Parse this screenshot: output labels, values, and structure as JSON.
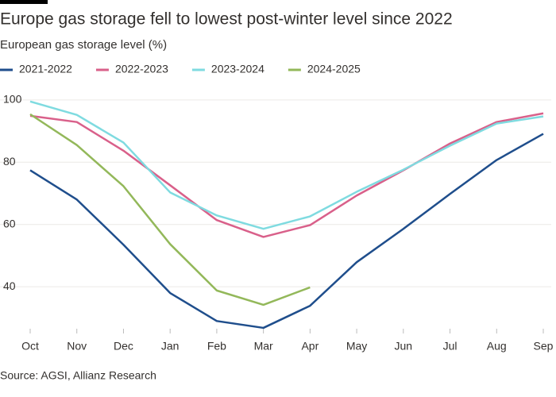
{
  "chart_data": {
    "type": "line",
    "title": "Europe gas storage fell to lowest post-winter level since 2022",
    "subtitle": "European gas storage level (%)",
    "source": "Source: AGSI, Allianz Research",
    "categories": [
      "Oct",
      "Nov",
      "Dec",
      "Jan",
      "Feb",
      "Mar",
      "Apr",
      "May",
      "Jun",
      "Jul",
      "Aug",
      "Sep"
    ],
    "series": [
      {
        "name": "2021-2022",
        "color": "#1f4e8c",
        "values": [
          77.4,
          68,
          53.5,
          38,
          29,
          26.8,
          33.9,
          47.9,
          58.6,
          69.8,
          80.7,
          89.1
        ]
      },
      {
        "name": "2022-2023",
        "color": "#d9608a",
        "values": [
          94.9,
          92.9,
          83.7,
          72.6,
          61.4,
          56,
          59.8,
          69.3,
          77.4,
          86,
          92.9,
          95.7
        ]
      },
      {
        "name": "2023-2024",
        "color": "#7fdbe0",
        "values": [
          99.5,
          95.2,
          86.3,
          70.3,
          62.9,
          58.6,
          62.6,
          70.5,
          77.6,
          85.3,
          92.4,
          94.7
        ]
      },
      {
        "name": "2024-2025",
        "color": "#93b85a",
        "values": [
          95.4,
          85.5,
          72.3,
          53.7,
          38.8,
          34.2,
          39.8,
          null,
          null,
          null,
          null,
          null
        ]
      }
    ],
    "ylim": [
      25,
      102
    ],
    "yticks": [
      40,
      60,
      80,
      100
    ],
    "grid": true
  }
}
